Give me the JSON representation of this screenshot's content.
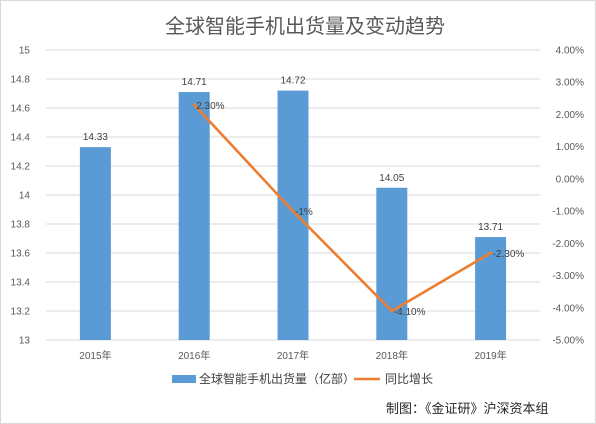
{
  "chart_data": {
    "type": "bar",
    "title": "全球智能手机出货量及变动趋势",
    "categories": [
      "2015年",
      "2016年",
      "2017年",
      "2018年",
      "2019年"
    ],
    "series": [
      {
        "name": "全球智能手机出货量（亿部）",
        "type": "bar",
        "axis": "left",
        "values": [
          14.33,
          14.71,
          14.72,
          14.05,
          13.71
        ],
        "labels": [
          "14.33",
          "14.71",
          "14.72",
          "14.05",
          "13.71"
        ],
        "color": "#5b9bd5"
      },
      {
        "name": "同比增长",
        "type": "line",
        "axis": "right",
        "values": [
          null,
          2.3,
          -1.0,
          -4.1,
          -2.3
        ],
        "labels": [
          "",
          "2.30%",
          "-1%",
          "-4.10%",
          "-2.30%"
        ],
        "color": "#ed7d31"
      }
    ],
    "y_left": {
      "min": 13,
      "max": 15,
      "ticks": [
        "13",
        "13.2",
        "13.4",
        "13.6",
        "13.8",
        "14",
        "14.2",
        "14.4",
        "14.6",
        "14.8",
        "15"
      ]
    },
    "y_right": {
      "min": -5,
      "max": 4,
      "unit": "%",
      "ticks": [
        "-5.00%",
        "-4.00%",
        "-3.00%",
        "-2.00%",
        "-1.00%",
        "0.00%",
        "1.00%",
        "2.00%",
        "3.00%",
        "4.00%"
      ]
    },
    "grid": true,
    "legend_position": "bottom"
  },
  "source": "制图：《金证研》沪深资本组"
}
